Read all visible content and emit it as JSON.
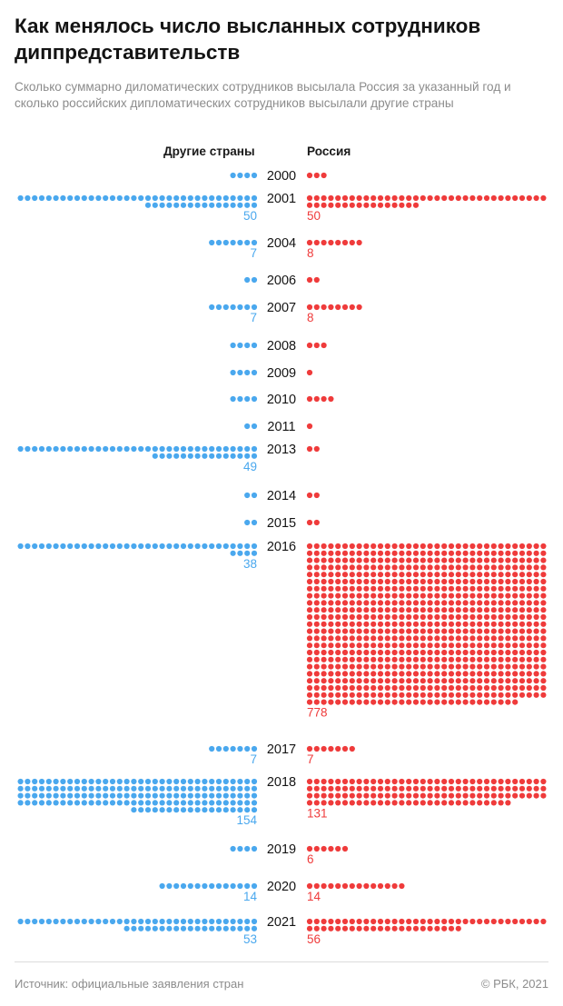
{
  "title": "Как менялось число высланных сотрудников диппредставительств",
  "subtitle": "Сколько суммарно диломатических сотрудников высылала Россия за указанный год и сколько российских дипломатических сотрудников высылали другие страны",
  "legend": {
    "left": "Другие страны",
    "right": "Россия"
  },
  "source": "Источник: официальные заявления стран",
  "copyright": "© РБК, 2021",
  "colors": {
    "left": "#4aa8ee",
    "right": "#ef3b3b",
    "year": "#141414"
  },
  "chart_data": {
    "type": "dot-matrix",
    "unit": "dot = 1 diplomat",
    "categories": [
      "2000",
      "2001",
      "2004",
      "2006",
      "2007",
      "2008",
      "2009",
      "2010",
      "2011",
      "2013",
      "2014",
      "2015",
      "2016",
      "2017",
      "2018",
      "2019",
      "2020",
      "2021"
    ],
    "series": [
      {
        "name": "Другие страны",
        "values": [
          4,
          50,
          7,
          2,
          7,
          4,
          4,
          4,
          2,
          49,
          2,
          2,
          38,
          7,
          154,
          4,
          14,
          53
        ],
        "labels": [
          "",
          "50",
          "7",
          "",
          "7",
          "",
          "",
          "",
          "",
          "49",
          "",
          "",
          "38",
          "7",
          "154",
          "",
          "14",
          "53"
        ]
      },
      {
        "name": "Россия",
        "values": [
          3,
          50,
          8,
          2,
          8,
          3,
          1,
          4,
          1,
          2,
          2,
          2,
          778,
          7,
          131,
          6,
          14,
          56
        ],
        "labels": [
          "",
          "50",
          "8",
          "",
          "8",
          "",
          "",
          "",
          "",
          "",
          "",
          "",
          "778",
          "7",
          "131",
          "6",
          "14",
          "56"
        ]
      }
    ]
  }
}
